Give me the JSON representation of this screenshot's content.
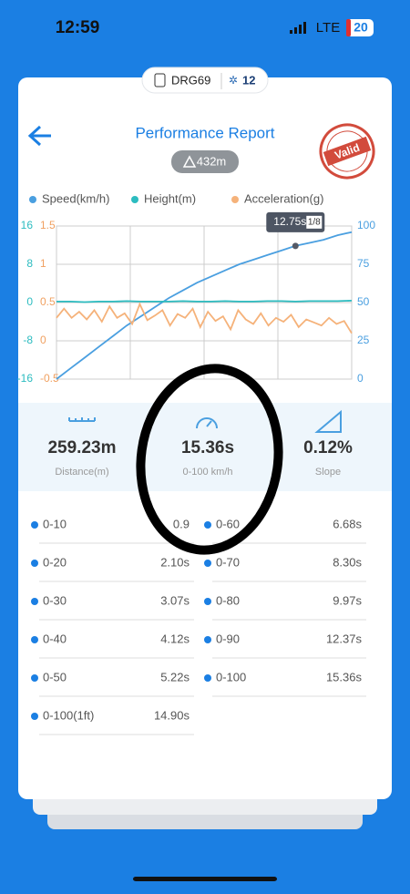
{
  "status_bar": {
    "time": "12:59",
    "network": "LTE",
    "battery": "20"
  },
  "tag": {
    "id": "DRG69",
    "count": "12"
  },
  "header": {
    "title": "Performance Report",
    "stamp": "Valid",
    "distance_badge": "432m"
  },
  "chart": {
    "type": "line",
    "grid": true,
    "series": [
      {
        "name": "Speed(km/h)",
        "color": "#4a9fe0",
        "axis": "speed",
        "values": [
          0,
          7,
          14,
          21,
          28,
          35,
          41,
          47,
          53,
          58,
          63,
          67,
          71,
          75,
          78,
          81,
          84,
          87,
          89,
          91,
          94,
          96
        ]
      },
      {
        "name": "Height(m)",
        "color": "#2cbcc0",
        "axis": "height",
        "values": [
          0.2,
          0.2,
          0.1,
          0.2,
          0.2,
          0.3,
          0.2,
          0.2,
          0.2,
          0.3,
          0.2,
          0.2,
          0.3,
          0.2,
          0.2,
          0.3,
          0.3,
          0.2,
          0.3,
          0.3,
          0.3,
          0.4
        ]
      },
      {
        "name": "Acceleration(g)",
        "color": "#f5b27a",
        "axis": "acceleration",
        "values": [
          0.3,
          0.42,
          0.3,
          0.38,
          0.28,
          0.4,
          0.25,
          0.45,
          0.3,
          0.36,
          0.22,
          0.48,
          0.27,
          0.33,
          0.4,
          0.2,
          0.35,
          0.3,
          0.42,
          0.18,
          0.38,
          0.26,
          0.32,
          0.15,
          0.4,
          0.28,
          0.22,
          0.36,
          0.2,
          0.3,
          0.25,
          0.34,
          0.18,
          0.28,
          0.24,
          0.2,
          0.3,
          0.22,
          0.26,
          0.1
        ]
      }
    ],
    "axes": {
      "height": {
        "lim": [
          -16,
          16
        ],
        "ticks": [
          16,
          8,
          0,
          -8,
          -16
        ],
        "color": "#2cbcc0"
      },
      "acceleration": {
        "lim": [
          -0.5,
          1.5
        ],
        "ticks": [
          1.5,
          1,
          0.5,
          0,
          -0.5
        ],
        "color": "#f0a060"
      },
      "speed": {
        "lim": [
          0,
          100
        ],
        "ticks": [
          100,
          75,
          50,
          25,
          0
        ],
        "color": "#4a9fe0"
      }
    },
    "tooltip": {
      "time": "12.75s",
      "page": "1/8"
    }
  },
  "stats": [
    {
      "value": "259.23m",
      "label": "Distance(m)"
    },
    {
      "value": "15.36s",
      "label": "0-100 km/h"
    },
    {
      "value": "0.12%",
      "label": "Slope"
    }
  ],
  "splits": {
    "left": [
      {
        "label": "0-10",
        "time": "0.9"
      },
      {
        "label": "0-20",
        "time": "2.10s"
      },
      {
        "label": "0-30",
        "time": "3.07s"
      },
      {
        "label": "0-40",
        "time": "4.12s"
      },
      {
        "label": "0-50",
        "time": "5.22s"
      },
      {
        "label": "0-100(1ft)",
        "time": "14.90s"
      }
    ],
    "right": [
      {
        "label": "0-60",
        "time": "6.68s"
      },
      {
        "label": "0-70",
        "time": "8.30s"
      },
      {
        "label": "0-80",
        "time": "9.97s"
      },
      {
        "label": "0-90",
        "time": "12.37s"
      },
      {
        "label": "0-100",
        "time": "15.36s"
      }
    ]
  }
}
